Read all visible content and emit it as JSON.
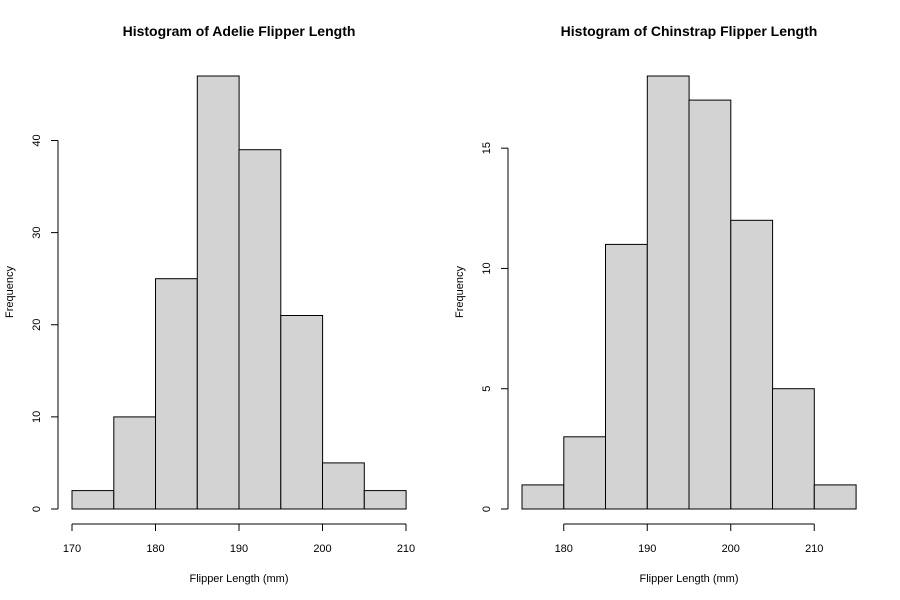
{
  "chart_data": [
    {
      "type": "bar",
      "title": "Histogram of Adelie Flipper Length",
      "xlabel": "Flipper Length (mm)",
      "ylabel": "Frequency",
      "bin_edges": [
        170,
        175,
        180,
        185,
        190,
        195,
        200,
        205,
        210
      ],
      "values": [
        2,
        10,
        25,
        47,
        39,
        21,
        5,
        2
      ],
      "xlim": [
        170,
        210
      ],
      "ylim": [
        0,
        47
      ],
      "x_ticks": [
        170,
        180,
        190,
        200,
        210
      ],
      "y_ticks": [
        0,
        10,
        20,
        30,
        40
      ],
      "grid": false,
      "bar_color": "#d3d3d3"
    },
    {
      "type": "bar",
      "title": "Histogram of Chinstrap Flipper Length",
      "xlabel": "Flipper Length (mm)",
      "ylabel": "Frequency",
      "bin_edges": [
        175,
        180,
        185,
        190,
        195,
        200,
        205,
        210,
        215
      ],
      "values": [
        1,
        3,
        11,
        18,
        17,
        12,
        5,
        1
      ],
      "xlim": [
        175,
        215
      ],
      "ylim": [
        0,
        18
      ],
      "x_ticks": [
        180,
        190,
        200,
        210
      ],
      "y_ticks": [
        0,
        5,
        10,
        15
      ],
      "grid": false,
      "bar_color": "#d3d3d3"
    }
  ]
}
